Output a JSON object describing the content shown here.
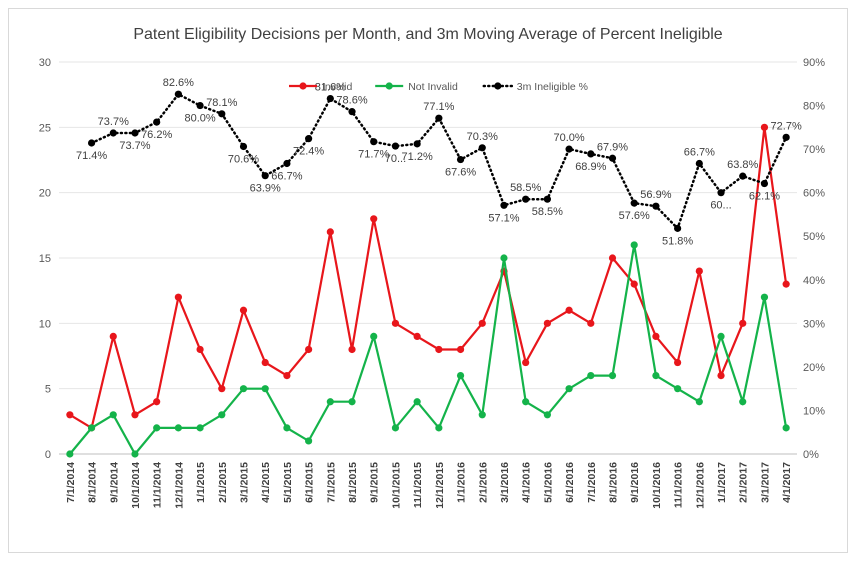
{
  "chart_data": {
    "type": "line",
    "title": "Patent Eligibility Decisions per Month, and 3m Moving Average of Percent Ineligible",
    "categories": [
      "7/1/2014",
      "8/1/2014",
      "9/1/2014",
      "10/1/2014",
      "11/1/2014",
      "12/1/2014",
      "1/1/2015",
      "2/1/2015",
      "3/1/2015",
      "4/1/2015",
      "5/1/2015",
      "6/1/2015",
      "7/1/2015",
      "8/1/2015",
      "9/1/2015",
      "10/1/2015",
      "11/1/2015",
      "12/1/2015",
      "1/1/2016",
      "2/1/2016",
      "3/1/2016",
      "4/1/2016",
      "5/1/2016",
      "6/1/2016",
      "7/1/2016",
      "8/1/2016",
      "9/1/2016",
      "10/1/2016",
      "11/1/2016",
      "12/1/2016",
      "1/1/2017",
      "2/1/2017",
      "3/1/2017",
      "4/1/2017"
    ],
    "y_left": {
      "min": 0,
      "max": 30,
      "step": 5,
      "ticks": [
        "0",
        "5",
        "10",
        "15",
        "20",
        "25",
        "30"
      ]
    },
    "y_right": {
      "min": 0,
      "max": 0.9,
      "step": 0.1,
      "ticks": [
        "0%",
        "10%",
        "20%",
        "30%",
        "40%",
        "50%",
        "60%",
        "70%",
        "80%",
        "90%"
      ]
    },
    "legend": {
      "position": "top"
    },
    "grid": true,
    "series": [
      {
        "name": "Invalid",
        "color": "#e8161b",
        "axis": "left",
        "style": "solid",
        "values": [
          3,
          2,
          9,
          3,
          4,
          12,
          8,
          5,
          11,
          7,
          6,
          8,
          17,
          8,
          18,
          10,
          9,
          8,
          8,
          10,
          14,
          7,
          10,
          11,
          10,
          15,
          13,
          9,
          7,
          14,
          6,
          10,
          25,
          13
        ]
      },
      {
        "name": "Not Invalid",
        "color": "#14b34a",
        "axis": "left",
        "style": "solid",
        "values": [
          0,
          2,
          3,
          0,
          2,
          2,
          2,
          3,
          5,
          5,
          2,
          1,
          4,
          4,
          9,
          2,
          4,
          2,
          6,
          3,
          15,
          4,
          3,
          5,
          6,
          6,
          16,
          6,
          5,
          4,
          9,
          4,
          12,
          2
        ]
      },
      {
        "name": "3m Ineligible %",
        "color": "#000000",
        "axis": "right",
        "style": "dotted",
        "values": [
          null,
          0.714,
          0.737,
          0.737,
          0.762,
          0.826,
          0.8,
          0.781,
          0.706,
          0.639,
          0.667,
          0.724,
          0.816,
          0.786,
          0.717,
          0.707,
          0.712,
          0.771,
          0.676,
          0.703,
          0.571,
          0.585,
          0.585,
          0.7,
          0.689,
          0.679,
          0.576,
          0.569,
          0.518,
          0.667,
          0.6,
          0.638,
          0.621,
          0.727
        ],
        "labels": [
          "",
          "71.4%",
          "73.7%",
          "73.7%",
          "76.2%",
          "82.6%",
          "80.0%",
          "78.1%",
          "70.6%",
          "63.9%",
          "66.7%",
          "72.4%",
          "81.6%",
          "78.6%",
          "71.7%",
          "70...",
          "71.2%",
          "77.1%",
          "67.6%",
          "70.3%",
          "57.1%",
          "58.5%",
          "58.5%",
          "70.0%",
          "68.9%",
          "67.9%",
          "57.6%",
          "56.9%",
          "51.8%",
          "66.7%",
          "60...",
          "63.8%",
          "62.1%",
          "72.7%"
        ]
      }
    ]
  }
}
